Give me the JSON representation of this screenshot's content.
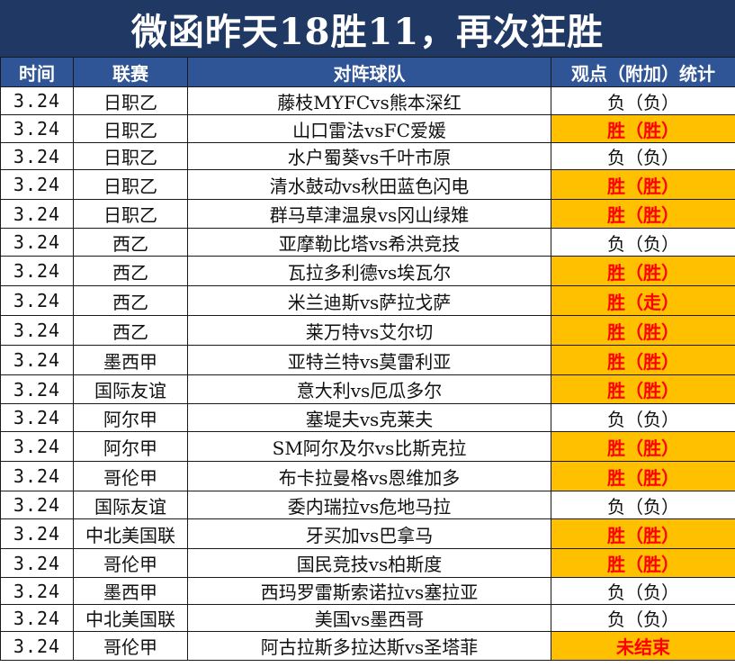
{
  "title": "微函昨天18胜11，再次狂胜",
  "headers": {
    "time": "时间",
    "league": "联赛",
    "match": "对阵球队",
    "result": "观点（附加）统计"
  },
  "colors": {
    "banner": "#1f3864",
    "header": "#2f5597",
    "win_fill": "#ffc000",
    "win_text": "#ff0000"
  },
  "rows": [
    {
      "time": "3.24",
      "league": "日职乙",
      "match": "藤枝MYFCvs熊本深红",
      "result": "负（负）",
      "status": "loss"
    },
    {
      "time": "3.24",
      "league": "日职乙",
      "match": "山口雷法vsFC爱媛",
      "result": "胜（胜）",
      "status": "win"
    },
    {
      "time": "3.24",
      "league": "日职乙",
      "match": "水户蜀葵vs千叶市原",
      "result": "负（负）",
      "status": "loss"
    },
    {
      "time": "3.24",
      "league": "日职乙",
      "match": "清水鼓动vs秋田蓝色闪电",
      "result": "胜（胜）",
      "status": "win"
    },
    {
      "time": "3.24",
      "league": "日职乙",
      "match": "群马草津温泉vs冈山绿雉",
      "result": "胜（胜）",
      "status": "win"
    },
    {
      "time": "3.24",
      "league": "西乙",
      "match": "亚摩勒比塔vs希洪竞技",
      "result": "负（负）",
      "status": "loss"
    },
    {
      "time": "3.24",
      "league": "西乙",
      "match": "瓦拉多利德vs埃瓦尔",
      "result": "胜（胜）",
      "status": "win"
    },
    {
      "time": "3.24",
      "league": "西乙",
      "match": "米兰迪斯vs萨拉戈萨",
      "result": "胜（走）",
      "status": "win"
    },
    {
      "time": "3.24",
      "league": "西乙",
      "match": "莱万特vs艾尔切",
      "result": "胜（胜）",
      "status": "win"
    },
    {
      "time": "3.24",
      "league": "墨西甲",
      "match": "亚特兰特vs莫雷利亚",
      "result": "胜（胜）",
      "status": "win"
    },
    {
      "time": "3.24",
      "league": "国际友谊",
      "match": "意大利vs厄瓜多尔",
      "result": "胜（胜）",
      "status": "win"
    },
    {
      "time": "3.24",
      "league": "阿尔甲",
      "match": "塞堤夫vs克莱夫",
      "result": "负（负）",
      "status": "loss"
    },
    {
      "time": "3.24",
      "league": "阿尔甲",
      "match": "SM阿尔及尔vs比斯克拉",
      "result": "胜（胜）",
      "status": "win"
    },
    {
      "time": "3.24",
      "league": "哥伦甲",
      "match": "布卡拉曼格vs恩维加多",
      "result": "胜（胜）",
      "status": "win"
    },
    {
      "time": "3.24",
      "league": "国际友谊",
      "match": "委内瑞拉vs危地马拉",
      "result": "负（负）",
      "status": "loss"
    },
    {
      "time": "3.24",
      "league": "中北美国联",
      "match": "牙买加vs巴拿马",
      "result": "胜（胜）",
      "status": "win"
    },
    {
      "time": "3.24",
      "league": "哥伦甲",
      "match": "国民竞技vs柏斯度",
      "result": "胜（胜）",
      "status": "win"
    },
    {
      "time": "3.24",
      "league": "墨西甲",
      "match": "西玛罗雷斯索诺拉vs塞拉亚",
      "result": "负（负）",
      "status": "loss"
    },
    {
      "time": "3.24",
      "league": "中北美国联",
      "match": "美国vs墨西哥",
      "result": "负（负）",
      "status": "loss"
    },
    {
      "time": "3.24",
      "league": "哥伦甲",
      "match": "阿古拉斯多拉达斯vs圣塔菲",
      "result": "未结束",
      "status": "pending"
    }
  ]
}
